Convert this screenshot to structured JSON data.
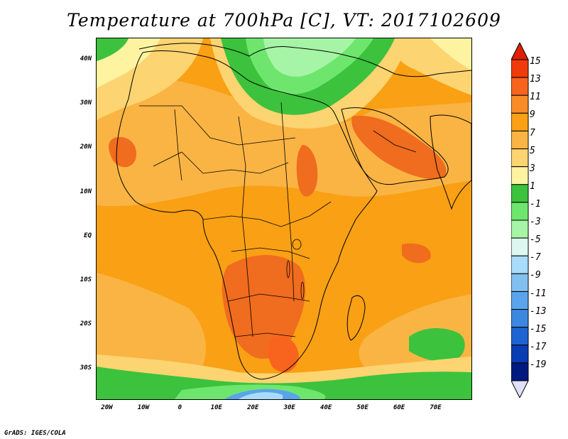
{
  "title": "Temperature at 700hPa [C], VT: 2017102609",
  "footer": "GrADS: IGES/COLA",
  "map": {
    "lon_range": [
      -23,
      80
    ],
    "lat_range": [
      -37,
      45
    ],
    "lat_ticks": [
      {
        "value": 40,
        "label": "40N"
      },
      {
        "value": 30,
        "label": "30N"
      },
      {
        "value": 20,
        "label": "20N"
      },
      {
        "value": 10,
        "label": "10N"
      },
      {
        "value": 0,
        "label": "EQ"
      },
      {
        "value": -10,
        "label": "10S"
      },
      {
        "value": -20,
        "label": "20S"
      },
      {
        "value": -30,
        "label": "30S"
      }
    ],
    "lon_ticks": [
      {
        "value": -20,
        "label": "20W"
      },
      {
        "value": -10,
        "label": "10W"
      },
      {
        "value": 0,
        "label": "0"
      },
      {
        "value": 10,
        "label": "10E"
      },
      {
        "value": 20,
        "label": "20E"
      },
      {
        "value": 30,
        "label": "30E"
      },
      {
        "value": 40,
        "label": "40E"
      },
      {
        "value": 50,
        "label": "50E"
      },
      {
        "value": 60,
        "label": "60E"
      },
      {
        "value": 70,
        "label": "70E"
      }
    ]
  },
  "colorbar": {
    "labels": [
      "15",
      "13",
      "11",
      "9",
      "7",
      "5",
      "3",
      "1",
      "-1",
      "-3",
      "-5",
      "-7",
      "-9",
      "-11",
      "-13",
      "-15",
      "-17",
      "-19"
    ],
    "colors": [
      "#f03c0a",
      "#f8641e",
      "#fa8c28",
      "#f9a014",
      "#fab444",
      "#fcd471",
      "#fdf3a0",
      "#3cc23c",
      "#6ee66e",
      "#a6f5a6",
      "#dcf8f0",
      "#a8dcf8",
      "#82c0f0",
      "#5aa4ec",
      "#3c88e0",
      "#1e64d2",
      "#0a3cb4",
      "#001a80"
    ],
    "top_arrow_color": "#e01e00",
    "bottom_arrow_color": "#e0e0fa"
  },
  "palette": {
    "deep_orange": "#f06c1e",
    "orange": "#f9a014",
    "light_orange": "#fab444",
    "yellow": "#fcd471",
    "pale_yellow": "#fdf3a0",
    "green": "#3cc23c",
    "light_green": "#6ee66e",
    "pale_green": "#a6f5a6",
    "blue": "#5aa4ec",
    "light_blue": "#a8dcf8"
  }
}
